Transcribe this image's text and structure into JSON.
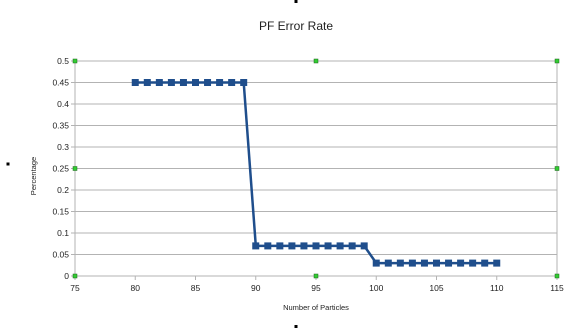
{
  "chart_data": {
    "type": "line",
    "title": "PF Error Rate",
    "xlabel": "Number of Particles",
    "ylabel": "Percentage",
    "xlim": [
      75,
      115
    ],
    "ylim": [
      0,
      0.5
    ],
    "x_ticks": [
      "75",
      "80",
      "85",
      "90",
      "95",
      "100",
      "105",
      "110",
      "115"
    ],
    "y_ticks": [
      "0",
      "0.05",
      "0.1",
      "0.15",
      "0.2",
      "0.25",
      "0.3",
      "0.35",
      "0.4",
      "0.45",
      "0.5"
    ],
    "grid": true,
    "legend": "none",
    "series": [
      {
        "color": "#1f4e8c",
        "x": [
          80,
          81,
          82,
          83,
          84,
          85,
          86,
          87,
          88,
          89,
          90,
          91,
          92,
          93,
          94,
          95,
          96,
          97,
          98,
          99,
          100,
          101,
          102,
          103,
          104,
          105,
          106,
          107,
          108,
          109,
          110
        ],
        "y": [
          0.45,
          0.45,
          0.45,
          0.45,
          0.45,
          0.45,
          0.45,
          0.45,
          0.45,
          0.45,
          0.07,
          0.07,
          0.07,
          0.07,
          0.07,
          0.07,
          0.07,
          0.07,
          0.07,
          0.07,
          0.03,
          0.03,
          0.03,
          0.03,
          0.03,
          0.03,
          0.03,
          0.03,
          0.03,
          0.03,
          0.03
        ]
      }
    ]
  }
}
